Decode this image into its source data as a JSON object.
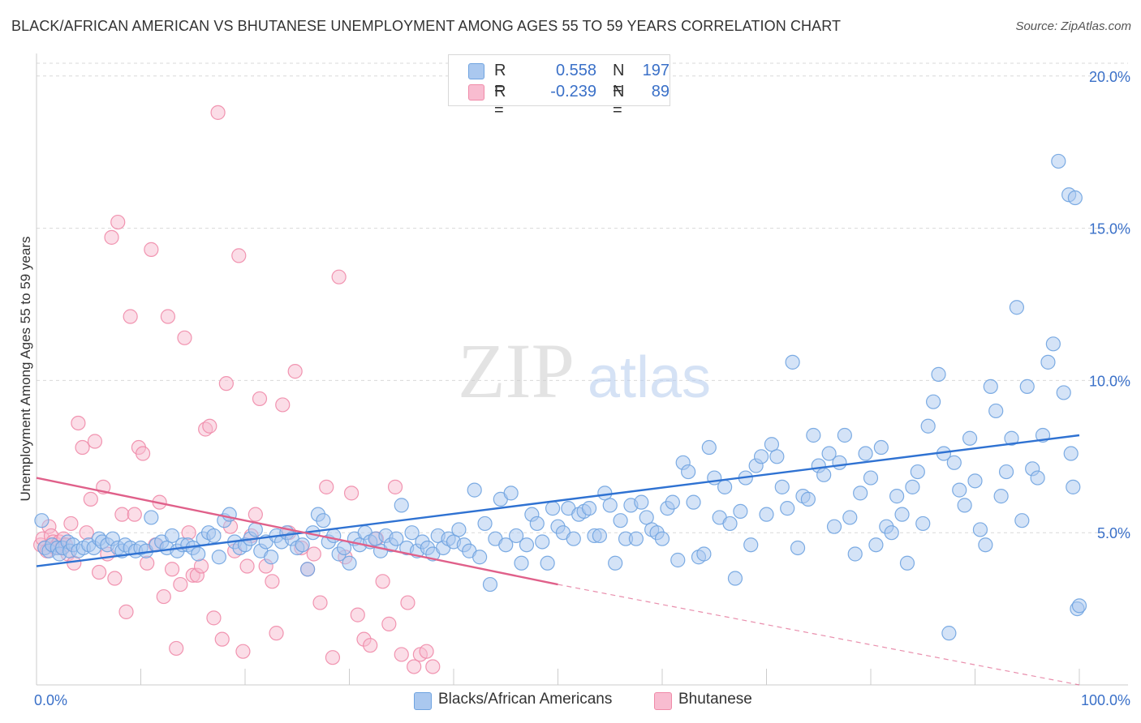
{
  "title": "BLACK/AFRICAN AMERICAN VS BHUTANESE UNEMPLOYMENT AMONG AGES 55 TO 59 YEARS CORRELATION CHART",
  "source": "Source: ZipAtlas.com",
  "watermark": {
    "zip": "ZIP",
    "atlas": "atlas"
  },
  "legend_top": {
    "r_label": "R =",
    "n_label": "N =",
    "rows": [
      {
        "r": "0.558",
        "n": "197",
        "color": "#6fa3e0"
      },
      {
        "r": "-0.239",
        "n": "89",
        "color": "#f08aa8"
      }
    ]
  },
  "legend_bottom": {
    "items": [
      {
        "label": "Blacks/African Americans",
        "color": "#6fa3e0"
      },
      {
        "label": "Bhutanese",
        "color": "#f08aa8"
      }
    ]
  },
  "colors": {
    "blue_fill": "#aac8ef",
    "blue_stroke": "#6fa3e0",
    "blue_line": "#2f72d2",
    "pink_fill": "#f8bcd0",
    "pink_stroke": "#f08aa8",
    "pink_line": "#e0608a",
    "axis_text": "#3a70c8",
    "grid": "#d9d9d9"
  },
  "chart_data": {
    "type": "scatter",
    "title": "BLACK/AFRICAN AMERICAN VS BHUTANESE UNEMPLOYMENT AMONG AGES 55 TO 59 YEARS CORRELATION CHART",
    "xlabel": "",
    "ylabel": "Unemployment Among Ages 55 to 59 years",
    "xlim": [
      0,
      100
    ],
    "ylim": [
      0,
      20.5
    ],
    "x_tick_labels": [
      {
        "value": 0,
        "label": "0.0%"
      },
      {
        "value": 100,
        "label": "100.0%"
      }
    ],
    "y_ticks": [
      {
        "value": 5,
        "label": "5.0%"
      },
      {
        "value": 10,
        "label": "10.0%"
      },
      {
        "value": 15,
        "label": "15.0%"
      },
      {
        "value": 20,
        "label": "20.0%"
      }
    ],
    "grid": true,
    "legend_position": "top-center",
    "series": [
      {
        "name": "Blacks/African Americans",
        "r": 0.558,
        "n": 197,
        "trend": {
          "x": [
            0,
            100
          ],
          "y": [
            3.9,
            8.2
          ],
          "style": "solid"
        },
        "points": [
          [
            0.5,
            5.4
          ],
          [
            0.8,
            4.5
          ],
          [
            1.2,
            4.4
          ],
          [
            1.5,
            4.6
          ],
          [
            2.0,
            4.5
          ],
          [
            2.2,
            4.3
          ],
          [
            2.5,
            4.5
          ],
          [
            3.0,
            4.7
          ],
          [
            3.2,
            4.4
          ],
          [
            3.5,
            4.6
          ],
          [
            4.0,
            4.4
          ],
          [
            4.5,
            4.5
          ],
          [
            5.0,
            4.6
          ],
          [
            5.5,
            4.5
          ],
          [
            6.0,
            4.8
          ],
          [
            6.3,
            4.7
          ],
          [
            6.8,
            4.6
          ],
          [
            7.3,
            4.8
          ],
          [
            7.8,
            4.5
          ],
          [
            8.2,
            4.4
          ],
          [
            8.5,
            4.6
          ],
          [
            9.0,
            4.5
          ],
          [
            9.5,
            4.4
          ],
          [
            10.0,
            4.5
          ],
          [
            10.5,
            4.4
          ],
          [
            11.0,
            5.5
          ],
          [
            11.5,
            4.6
          ],
          [
            12.0,
            4.7
          ],
          [
            12.5,
            4.5
          ],
          [
            13.0,
            4.9
          ],
          [
            13.5,
            4.4
          ],
          [
            14.0,
            4.6
          ],
          [
            14.5,
            4.6
          ],
          [
            15.0,
            4.5
          ],
          [
            15.5,
            4.3
          ],
          [
            16.0,
            4.8
          ],
          [
            16.5,
            5.0
          ],
          [
            17.0,
            4.9
          ],
          [
            17.5,
            4.2
          ],
          [
            18.0,
            5.4
          ],
          [
            18.5,
            5.6
          ],
          [
            19.0,
            4.7
          ],
          [
            19.5,
            4.5
          ],
          [
            20.0,
            4.6
          ],
          [
            20.5,
            4.8
          ],
          [
            21.0,
            5.1
          ],
          [
            21.5,
            4.4
          ],
          [
            22.0,
            4.7
          ],
          [
            22.5,
            4.2
          ],
          [
            23.0,
            4.9
          ],
          [
            23.5,
            4.7
          ],
          [
            24.0,
            5.0
          ],
          [
            24.5,
            4.8
          ],
          [
            25.0,
            4.5
          ],
          [
            25.5,
            4.6
          ],
          [
            26.0,
            3.8
          ],
          [
            26.5,
            5.0
          ],
          [
            27.0,
            5.6
          ],
          [
            27.5,
            5.4
          ],
          [
            28.0,
            4.7
          ],
          [
            28.5,
            4.9
          ],
          [
            29.0,
            4.3
          ],
          [
            29.5,
            4.5
          ],
          [
            30.0,
            4.0
          ],
          [
            30.5,
            4.8
          ],
          [
            31.0,
            4.6
          ],
          [
            31.5,
            5.0
          ],
          [
            32.0,
            4.7
          ],
          [
            32.5,
            4.8
          ],
          [
            33.0,
            4.4
          ],
          [
            33.5,
            4.9
          ],
          [
            34.0,
            4.6
          ],
          [
            34.5,
            4.8
          ],
          [
            35.0,
            5.9
          ],
          [
            35.5,
            4.5
          ],
          [
            36.0,
            5.0
          ],
          [
            36.5,
            4.4
          ],
          [
            37.0,
            4.7
          ],
          [
            37.5,
            4.5
          ],
          [
            38.0,
            4.3
          ],
          [
            38.5,
            4.9
          ],
          [
            39.0,
            4.5
          ],
          [
            39.5,
            4.8
          ],
          [
            40.0,
            4.7
          ],
          [
            40.5,
            5.1
          ],
          [
            41.0,
            4.6
          ],
          [
            41.5,
            4.4
          ],
          [
            42.0,
            6.4
          ],
          [
            42.5,
            4.2
          ],
          [
            43.0,
            5.3
          ],
          [
            43.5,
            3.3
          ],
          [
            44.0,
            4.8
          ],
          [
            44.5,
            6.1
          ],
          [
            45.0,
            4.6
          ],
          [
            45.5,
            6.3
          ],
          [
            46.0,
            4.9
          ],
          [
            46.5,
            4.0
          ],
          [
            47.0,
            4.6
          ],
          [
            47.5,
            5.6
          ],
          [
            48.0,
            5.3
          ],
          [
            48.5,
            4.7
          ],
          [
            49.0,
            4.0
          ],
          [
            49.5,
            5.8
          ],
          [
            50.0,
            5.2
          ],
          [
            50.5,
            5.0
          ],
          [
            51.0,
            5.8
          ],
          [
            51.5,
            4.8
          ],
          [
            52.0,
            5.6
          ],
          [
            52.5,
            5.7
          ],
          [
            53.0,
            5.8
          ],
          [
            53.5,
            4.9
          ],
          [
            54.0,
            4.9
          ],
          [
            54.5,
            6.3
          ],
          [
            55.0,
            5.9
          ],
          [
            55.5,
            4.0
          ],
          [
            56.0,
            5.4
          ],
          [
            56.5,
            4.8
          ],
          [
            57.0,
            5.9
          ],
          [
            57.5,
            4.8
          ],
          [
            58.0,
            6.0
          ],
          [
            58.5,
            5.5
          ],
          [
            59.0,
            5.1
          ],
          [
            59.5,
            5.0
          ],
          [
            60.0,
            4.8
          ],
          [
            60.5,
            5.8
          ],
          [
            61.0,
            6.0
          ],
          [
            61.5,
            4.1
          ],
          [
            62.0,
            7.3
          ],
          [
            62.5,
            7.0
          ],
          [
            63.0,
            6.0
          ],
          [
            63.5,
            4.2
          ],
          [
            64.0,
            4.3
          ],
          [
            64.5,
            7.8
          ],
          [
            65.0,
            6.8
          ],
          [
            65.5,
            5.5
          ],
          [
            66.0,
            6.5
          ],
          [
            66.5,
            5.3
          ],
          [
            67.0,
            3.5
          ],
          [
            67.5,
            5.7
          ],
          [
            68.0,
            6.8
          ],
          [
            68.5,
            4.6
          ],
          [
            69.0,
            7.2
          ],
          [
            69.5,
            7.5
          ],
          [
            70.0,
            5.6
          ],
          [
            70.5,
            7.9
          ],
          [
            71.0,
            7.5
          ],
          [
            71.5,
            6.5
          ],
          [
            72.0,
            5.8
          ],
          [
            72.5,
            10.6
          ],
          [
            73.0,
            4.5
          ],
          [
            73.5,
            6.2
          ],
          [
            74.0,
            6.1
          ],
          [
            74.5,
            8.2
          ],
          [
            75.0,
            7.2
          ],
          [
            75.5,
            6.9
          ],
          [
            76.0,
            7.6
          ],
          [
            76.5,
            5.2
          ],
          [
            77.0,
            7.3
          ],
          [
            77.5,
            8.2
          ],
          [
            78.0,
            5.5
          ],
          [
            78.5,
            4.3
          ],
          [
            79.0,
            6.3
          ],
          [
            79.5,
            7.6
          ],
          [
            80.0,
            6.8
          ],
          [
            80.5,
            4.6
          ],
          [
            81.0,
            7.8
          ],
          [
            81.5,
            5.2
          ],
          [
            82.0,
            5.0
          ],
          [
            82.5,
            6.2
          ],
          [
            83.0,
            5.6
          ],
          [
            83.5,
            4.0
          ],
          [
            84.0,
            6.5
          ],
          [
            84.5,
            7.0
          ],
          [
            85.0,
            5.3
          ],
          [
            85.5,
            8.5
          ],
          [
            86.0,
            9.3
          ],
          [
            86.5,
            10.2
          ],
          [
            87.0,
            7.6
          ],
          [
            87.5,
            1.7
          ],
          [
            88.0,
            7.3
          ],
          [
            88.5,
            6.4
          ],
          [
            89.0,
            5.9
          ],
          [
            89.5,
            8.1
          ],
          [
            90.0,
            6.7
          ],
          [
            90.5,
            5.1
          ],
          [
            91.0,
            4.6
          ],
          [
            91.5,
            9.8
          ],
          [
            92.0,
            9.0
          ],
          [
            92.5,
            6.2
          ],
          [
            93.0,
            7.0
          ],
          [
            93.5,
            8.1
          ],
          [
            94.0,
            12.4
          ],
          [
            94.5,
            5.4
          ],
          [
            95.0,
            9.8
          ],
          [
            95.5,
            7.1
          ],
          [
            96.0,
            6.8
          ],
          [
            96.5,
            8.2
          ],
          [
            97.0,
            10.6
          ],
          [
            97.5,
            11.2
          ],
          [
            98.0,
            17.2
          ],
          [
            98.5,
            9.6
          ],
          [
            99.0,
            16.1
          ],
          [
            99.2,
            7.6
          ],
          [
            99.4,
            6.5
          ],
          [
            99.6,
            16.0
          ],
          [
            99.8,
            2.5
          ],
          [
            100.0,
            2.6
          ]
        ]
      },
      {
        "name": "Bhutanese",
        "r": -0.239,
        "n": 89,
        "trend": {
          "x": [
            0,
            50
          ],
          "y": [
            6.8,
            3.3
          ],
          "style": "solid",
          "extension": {
            "x": [
              50,
              100
            ],
            "y": [
              3.3,
              0.0
            ],
            "style": "dashed"
          }
        },
        "points": [
          [
            0.4,
            4.6
          ],
          [
            0.6,
            4.8
          ],
          [
            0.8,
            4.5
          ],
          [
            1.0,
            4.4
          ],
          [
            1.2,
            5.2
          ],
          [
            1.4,
            4.9
          ],
          [
            1.6,
            4.7
          ],
          [
            1.8,
            4.5
          ],
          [
            2.0,
            4.6
          ],
          [
            2.2,
            4.7
          ],
          [
            2.4,
            4.5
          ],
          [
            2.6,
            4.8
          ],
          [
            2.8,
            4.6
          ],
          [
            3.0,
            4.3
          ],
          [
            3.3,
            5.3
          ],
          [
            3.6,
            4.0
          ],
          [
            4.0,
            8.6
          ],
          [
            4.4,
            7.8
          ],
          [
            4.8,
            5.0
          ],
          [
            5.2,
            6.1
          ],
          [
            5.6,
            8.0
          ],
          [
            6.0,
            3.7
          ],
          [
            6.4,
            6.5
          ],
          [
            6.8,
            4.3
          ],
          [
            7.2,
            14.7
          ],
          [
            7.5,
            3.5
          ],
          [
            7.8,
            15.2
          ],
          [
            8.2,
            5.6
          ],
          [
            8.6,
            2.4
          ],
          [
            9.0,
            12.1
          ],
          [
            9.4,
            5.6
          ],
          [
            9.8,
            7.8
          ],
          [
            10.2,
            7.6
          ],
          [
            10.6,
            4.0
          ],
          [
            11.0,
            14.3
          ],
          [
            11.4,
            4.6
          ],
          [
            11.8,
            6.0
          ],
          [
            12.2,
            2.9
          ],
          [
            12.6,
            12.1
          ],
          [
            13.0,
            3.8
          ],
          [
            13.4,
            1.2
          ],
          [
            13.8,
            3.3
          ],
          [
            14.2,
            11.4
          ],
          [
            14.6,
            5.0
          ],
          [
            15.0,
            3.6
          ],
          [
            15.4,
            3.6
          ],
          [
            15.8,
            3.9
          ],
          [
            16.2,
            8.4
          ],
          [
            16.6,
            8.5
          ],
          [
            17.0,
            2.2
          ],
          [
            17.4,
            18.8
          ],
          [
            17.8,
            1.5
          ],
          [
            18.2,
            9.9
          ],
          [
            18.6,
            5.2
          ],
          [
            19.0,
            4.4
          ],
          [
            19.4,
            14.1
          ],
          [
            19.8,
            1.1
          ],
          [
            20.2,
            3.9
          ],
          [
            20.6,
            4.9
          ],
          [
            21.0,
            5.6
          ],
          [
            21.4,
            9.4
          ],
          [
            22.0,
            3.9
          ],
          [
            22.6,
            3.4
          ],
          [
            23.0,
            1.7
          ],
          [
            23.6,
            9.2
          ],
          [
            24.2,
            5.0
          ],
          [
            24.8,
            10.3
          ],
          [
            25.4,
            4.5
          ],
          [
            26.0,
            3.8
          ],
          [
            26.6,
            4.3
          ],
          [
            27.2,
            2.7
          ],
          [
            27.8,
            6.5
          ],
          [
            28.4,
            0.9
          ],
          [
            29.0,
            13.4
          ],
          [
            29.6,
            4.2
          ],
          [
            30.2,
            6.3
          ],
          [
            30.8,
            2.3
          ],
          [
            31.4,
            1.5
          ],
          [
            32.0,
            1.3
          ],
          [
            32.6,
            4.8
          ],
          [
            33.2,
            3.4
          ],
          [
            33.8,
            2.0
          ],
          [
            34.4,
            6.5
          ],
          [
            35.0,
            1.0
          ],
          [
            35.6,
            2.7
          ],
          [
            36.2,
            0.6
          ],
          [
            36.8,
            1.0
          ],
          [
            37.4,
            1.1
          ],
          [
            38.0,
            0.6
          ]
        ]
      }
    ]
  }
}
